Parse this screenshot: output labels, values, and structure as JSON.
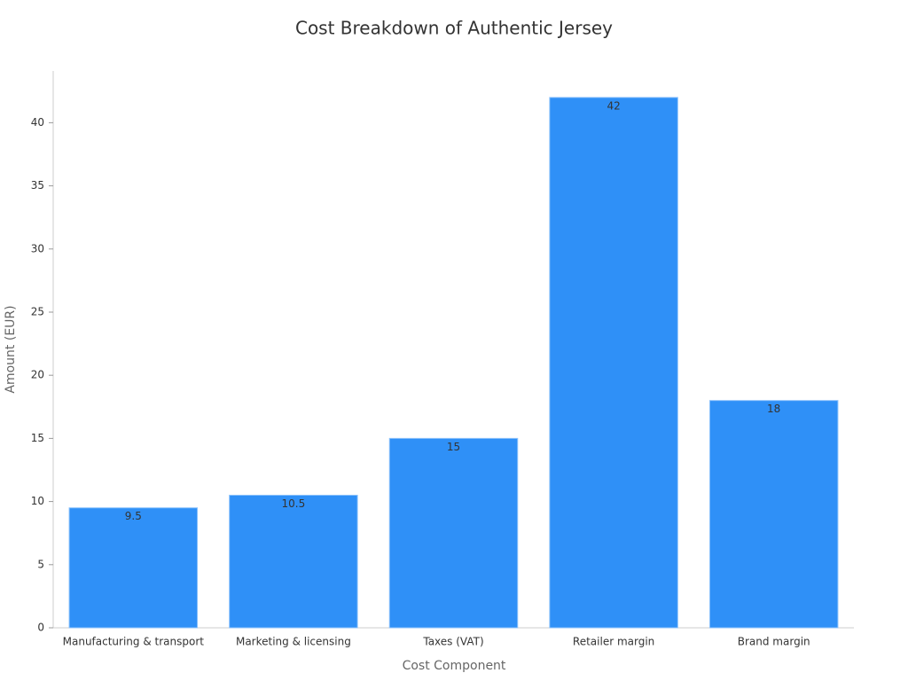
{
  "chart_data": {
    "type": "bar",
    "title": "Cost Breakdown of Authentic Jersey",
    "x_label": "Cost Component",
    "y_label": "Amount (EUR)",
    "categories": [
      "Manufacturing & transport",
      "Marketing & licensing",
      "Taxes (VAT)",
      "Retailer margin",
      "Brand margin"
    ],
    "values": [
      9.5,
      10.5,
      15,
      42,
      18
    ],
    "color": "#2f90f7",
    "ylim": [
      0,
      44.1
    ],
    "yticks": [
      0,
      5,
      10,
      15,
      20,
      25,
      30,
      35,
      40
    ],
    "grid": false
  }
}
